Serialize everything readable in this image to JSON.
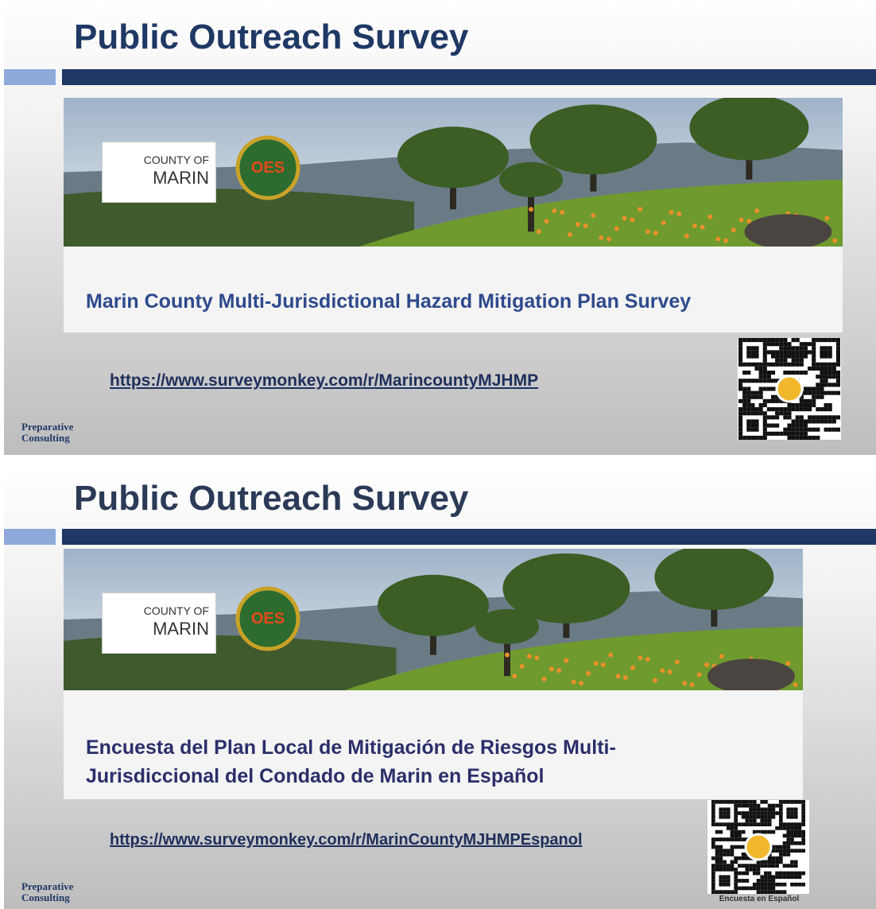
{
  "slides": [
    {
      "title": "Public Outreach Survey",
      "logo": [
        "COUNTY OF",
        "MARIN"
      ],
      "seal": "OES",
      "banner_caption": [
        "Marin County Multi-Jurisdictional Hazard Mitigation Plan Survey"
      ],
      "link": "https://www.surveymonkey.com/r/MarincountyMJHMP",
      "consulting": [
        "Preparative",
        "Consulting"
      ]
    },
    {
      "title": "Public Outreach Survey",
      "logo": [
        "COUNTY OF",
        "MARIN"
      ],
      "seal": "OES",
      "banner_caption": [
        "Encuesta del Plan Local de Mitigación de Riesgos Multi-",
        "Jurisdiccional del Condado de Marin en Español"
      ],
      "link": "https://www.surveymonkey.com/r/MarinCountyMJHMPEspanol",
      "consulting": [
        "Preparative",
        "Consulting"
      ],
      "qr_caption": "Encuesta en Español"
    }
  ]
}
